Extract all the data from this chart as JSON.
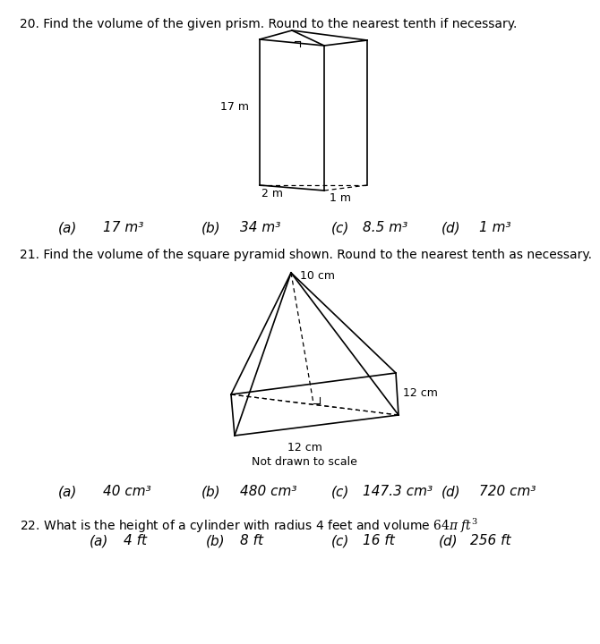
{
  "bg_color": "#ffffff",
  "q20_question": "20. Find the volume of the given prism. Round to the nearest tenth if necessary.",
  "q20_answers": [
    {
      "letter": "(a)",
      "value": "17 m³"
    },
    {
      "letter": "(b)",
      "value": "34 m³"
    },
    {
      "letter": "(c)",
      "value": "8.5 m³"
    },
    {
      "letter": "(d)",
      "value": "1 m³"
    }
  ],
  "q21_question": "21. Find the volume of the square pyramid shown. Round to the nearest tenth as necessary.",
  "q21_answers": [
    {
      "letter": "(a)",
      "value": "40 cm³"
    },
    {
      "letter": "(b)",
      "value": "480 cm³"
    },
    {
      "letter": "(c)",
      "value": "147.3 cm³"
    },
    {
      "letter": "(d)",
      "value": "720 cm³"
    }
  ],
  "q22_question": "22. What is the height of a cylinder with radius 4 feet and volume 64π ft³",
  "q22_answers": [
    {
      "letter": "(a)",
      "value": "4 ft"
    },
    {
      "letter": "(b)",
      "value": "8 ft"
    },
    {
      "letter": "(c)",
      "value": "16 ft"
    },
    {
      "letter": "(d)",
      "value": "256 ft"
    }
  ],
  "fs_q": 10.0,
  "fs_a": 11.0,
  "fs_lbl": 9.0,
  "fs_note": 9.0
}
